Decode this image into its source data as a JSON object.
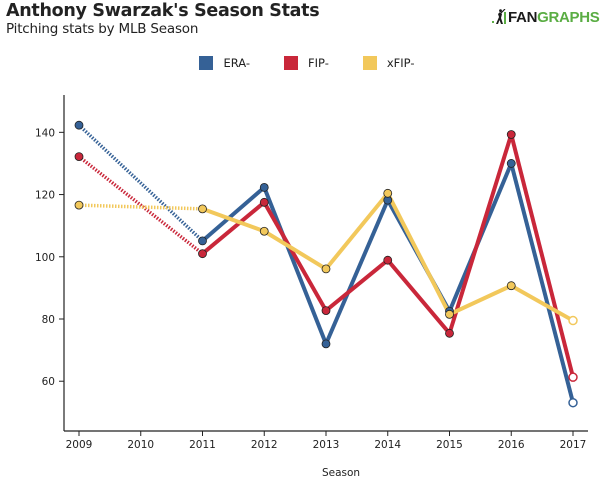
{
  "header": {
    "title": "Anthony Swarzak's Season Stats",
    "subtitle": "Pitching stats by MLB Season",
    "logo_left": "FAN",
    "logo_right": "GRAPHS",
    "logo_icon": "batter-icon"
  },
  "chart_data": {
    "type": "line",
    "title": "Anthony Swarzak's Season Stats",
    "subtitle": "Pitching stats by MLB Season",
    "xlabel": "Season",
    "ylabel": "",
    "x": [
      2009,
      2010,
      2011,
      2012,
      2013,
      2014,
      2015,
      2016,
      2017
    ],
    "x_tick_labels": [
      "2009",
      "2010",
      "2011",
      "2012",
      "2013",
      "2014",
      "2015",
      "2016",
      "2017"
    ],
    "y_ticks": [
      60,
      80,
      100,
      120,
      140
    ],
    "y_tick_labels": [
      "60",
      "80",
      "100",
      "120",
      "140"
    ],
    "xlim": [
      2008.75,
      2017.25
    ],
    "ylim": [
      44,
      152
    ],
    "grid": false,
    "legend_position": "top-center",
    "missing_seasons": [
      2010
    ],
    "gap_style": "dotted",
    "hollow_last_point": true,
    "series": [
      {
        "name": "ERA-",
        "color": "#356196",
        "values": [
          142.3,
          null,
          105.1,
          122.3,
          72.0,
          118.2,
          82.5,
          130.0,
          53.1
        ]
      },
      {
        "name": "FIP-",
        "color": "#c9273a",
        "values": [
          132.2,
          null,
          101.0,
          117.5,
          82.7,
          98.9,
          75.4,
          139.3,
          61.3
        ]
      },
      {
        "name": "xFIP-",
        "color": "#f2c85b",
        "values": [
          116.6,
          null,
          115.4,
          108.2,
          96.1,
          120.4,
          81.5,
          90.7,
          79.5
        ]
      }
    ]
  }
}
